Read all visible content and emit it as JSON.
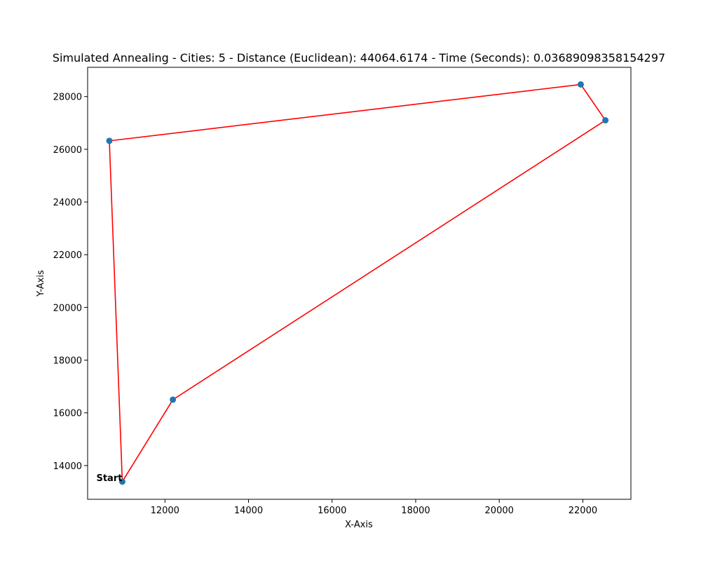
{
  "chart_data": {
    "type": "scatter",
    "title": "Simulated Annealing - Cities: 5 - Distance (Euclidean): 44064.6174 - Time (Seconds): 0.03689098358154297",
    "xlabel": "X-Axis",
    "ylabel": "Y-Axis",
    "xlim": [
      10150,
      23150
    ],
    "ylim": [
      12720,
      29110
    ],
    "x_ticks": [
      12000,
      14000,
      16000,
      18000,
      20000,
      22000
    ],
    "y_ticks": [
      14000,
      16000,
      18000,
      20000,
      22000,
      24000,
      26000,
      28000
    ],
    "grid": false,
    "points": [
      {
        "x": 10980,
        "y": 13390
      },
      {
        "x": 12190,
        "y": 16500
      },
      {
        "x": 22540,
        "y": 27100
      },
      {
        "x": 21950,
        "y": 28460
      },
      {
        "x": 10670,
        "y": 26320
      }
    ],
    "route": [
      0,
      1,
      2,
      3,
      4,
      0
    ],
    "start_index": 0,
    "start_label": "Start",
    "point_color": "#1f77b4",
    "route_color": "#ff0000"
  }
}
